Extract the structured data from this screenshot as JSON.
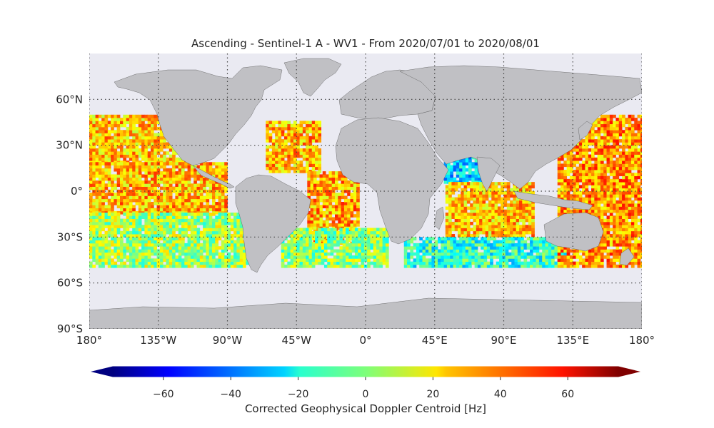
{
  "title": "Ascending - Sentinel-1 A - WV1 - From 2020/07/01 to 2020/08/01",
  "map": {
    "projection": "Plate Carree",
    "lon_range": [
      -180,
      180
    ],
    "lat_range": [
      -90,
      90
    ],
    "gridlines": "dotted",
    "ocean_color": "#eaeaf2",
    "land_color": "#c0c0c4",
    "lon_ticks": [
      {
        "value": -180,
        "label": "180°"
      },
      {
        "value": -135,
        "label": "135°W"
      },
      {
        "value": -90,
        "label": "90°W"
      },
      {
        "value": -45,
        "label": "45°W"
      },
      {
        "value": 0,
        "label": "0°"
      },
      {
        "value": 45,
        "label": "45°E"
      },
      {
        "value": 90,
        "label": "90°E"
      },
      {
        "value": 135,
        "label": "135°E"
      },
      {
        "value": 180,
        "label": "180°"
      }
    ],
    "lat_ticks": [
      {
        "value": 60,
        "label": "60°N"
      },
      {
        "value": 30,
        "label": "30°N"
      },
      {
        "value": 0,
        "label": "0°"
      },
      {
        "value": -30,
        "label": "30°S"
      },
      {
        "value": -60,
        "label": "60°S"
      },
      {
        "value": -90,
        "label": "90°S"
      }
    ]
  },
  "chart_data": {
    "type": "heatmap",
    "data_extent": {
      "lat": [
        -50,
        50
      ]
    },
    "value_range": [
      -75,
      75
    ],
    "colormap": "jet",
    "cell_size_deg": 2,
    "swaths": [
      {
        "region": "North Pacific",
        "lon": [
          -180,
          -117
        ],
        "lat": [
          18,
          50
        ],
        "level": 28
      },
      {
        "region": "Tropical Pacific",
        "lon": [
          -180,
          -90
        ],
        "lat": [
          -15,
          18
        ],
        "level": 30
      },
      {
        "region": "South Pacific",
        "lon": [
          -180,
          -77
        ],
        "lat": [
          -50,
          -15
        ],
        "level": 5
      },
      {
        "region": "North Atlantic",
        "lon": [
          -65,
          -30
        ],
        "lat": [
          12,
          45
        ],
        "level": 30
      },
      {
        "region": "Tropical Atlantic",
        "lon": [
          -38,
          -5
        ],
        "lat": [
          -35,
          12
        ],
        "level": 32
      },
      {
        "region": "South Atlantic",
        "lon": [
          -55,
          15
        ],
        "lat": [
          -50,
          -25
        ],
        "level": 2
      },
      {
        "region": "Arabian Sea",
        "lon": [
          51,
          78
        ],
        "lat": [
          5,
          22
        ],
        "level": -25
      },
      {
        "region": "Indian Ocean",
        "lon": [
          52,
          110
        ],
        "lat": [
          -30,
          5
        ],
        "level": 28
      },
      {
        "region": "Southern Indian Ocean",
        "lon": [
          25,
          130
        ],
        "lat": [
          -50,
          -30
        ],
        "level": -12
      },
      {
        "region": "Western Pacific",
        "lon": [
          125,
          180
        ],
        "lat": [
          -50,
          50
        ],
        "level": 35
      }
    ],
    "colorbar": {
      "label": "Corrected Geophysical Doppler Centroid [Hz]",
      "range": [
        -75,
        75
      ],
      "extend": "both",
      "ticks": [
        -60,
        -40,
        -20,
        0,
        20,
        40,
        60
      ],
      "tick_labels": [
        "−60",
        "−40",
        "−20",
        "0",
        "20",
        "40",
        "60"
      ]
    }
  }
}
